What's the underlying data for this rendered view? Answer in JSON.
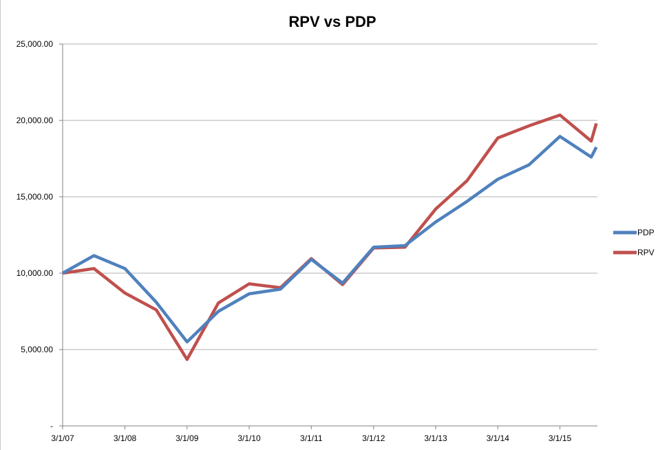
{
  "chart_data": {
    "type": "line",
    "title": "RPV vs PDP",
    "xlabel": "",
    "ylabel": "",
    "ylim": [
      0,
      25000
    ],
    "y_ticks": [
      0,
      5000,
      10000,
      15000,
      20000,
      25000
    ],
    "y_tick_labels": [
      "-",
      "5,000.00",
      "10,000.00",
      "15,000.00",
      "20,000.00",
      "25,000.00"
    ],
    "x_tick_labels": [
      "3/1/07",
      "3/1/08",
      "3/1/09",
      "3/1/10",
      "3/1/11",
      "3/1/12",
      "3/1/13",
      "3/1/14",
      "3/1/15"
    ],
    "x": [
      "3/1/07",
      "9/1/07",
      "3/1/08",
      "9/1/08",
      "3/1/09",
      "9/1/09",
      "3/1/10",
      "9/1/10",
      "3/1/11",
      "9/1/11",
      "3/1/12",
      "9/1/12",
      "3/1/13",
      "9/1/13",
      "3/1/14",
      "9/1/14",
      "3/1/15",
      "9/1/15",
      "10/1/15"
    ],
    "grid": true,
    "legend_position": "right",
    "series": [
      {
        "name": "PDP",
        "color": "#4f81bd",
        "values": [
          10000,
          11150,
          10300,
          8100,
          5500,
          7500,
          8650,
          8950,
          10900,
          9350,
          11700,
          11800,
          13350,
          14700,
          16150,
          17100,
          18950,
          17600,
          18250
        ]
      },
      {
        "name": "RPV",
        "color": "#c0504d",
        "values": [
          10000,
          10300,
          8700,
          7600,
          4350,
          8050,
          9300,
          9050,
          10950,
          9250,
          11650,
          11700,
          14200,
          16050,
          18850,
          19650,
          20350,
          18650,
          19800
        ]
      }
    ]
  }
}
